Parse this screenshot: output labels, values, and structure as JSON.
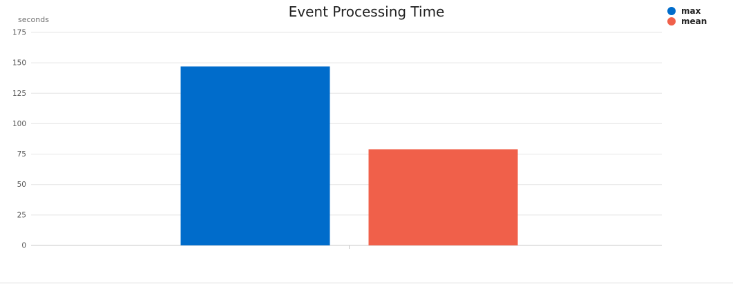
{
  "chart_data": {
    "type": "bar",
    "title": "Event Processing Time",
    "ylabel": "seconds",
    "xlabel": "",
    "ylim": [
      0,
      175
    ],
    "yticks": [
      0,
      25,
      50,
      75,
      100,
      125,
      150,
      175
    ],
    "grid": true,
    "legend_position": "top-right",
    "categories": [
      ""
    ],
    "series": [
      {
        "name": "max",
        "values": [
          147
        ],
        "color": "#006ccb"
      },
      {
        "name": "mean",
        "values": [
          79
        ],
        "color": "#f0604a"
      }
    ]
  }
}
